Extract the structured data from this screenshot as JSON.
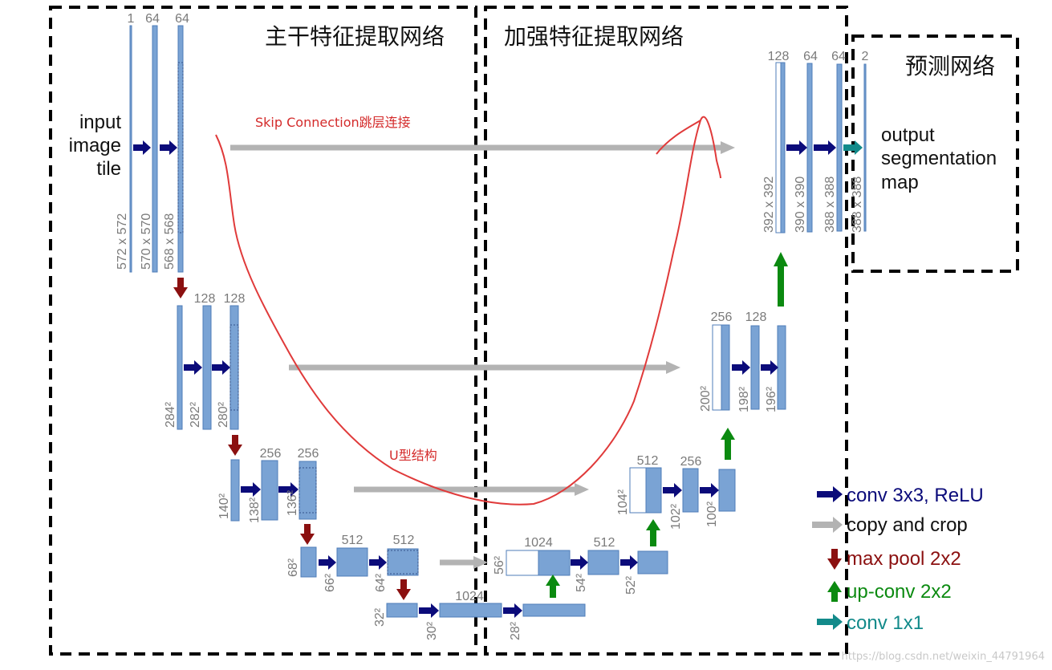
{
  "regions": {
    "backbone": "主干特征提取网络",
    "enhance": "加强特征提取网络",
    "predict": "预测网络"
  },
  "annotations": {
    "skip": "Skip Connection跳层连接",
    "ushape": "U型结构"
  },
  "io": {
    "input": [
      "input",
      "image",
      "tile"
    ],
    "output": [
      "output",
      "segmentation",
      "map"
    ]
  },
  "channels": {
    "l1": [
      "1",
      "64",
      "64"
    ],
    "l2": [
      "128",
      "128"
    ],
    "l3": [
      "256",
      "256"
    ],
    "l4": [
      "512",
      "512"
    ],
    "l5": [
      "1024"
    ],
    "u4": [
      "1024",
      "512"
    ],
    "u3": [
      "512",
      "256"
    ],
    "u2": [
      "256",
      "128"
    ],
    "u1": [
      "128",
      "64",
      "64",
      "2"
    ]
  },
  "sizes": {
    "l1": [
      "572 x 572",
      "570 x 570",
      "568 x 568"
    ],
    "l2": [
      "284²",
      "282²",
      "280²"
    ],
    "l3": [
      "140²",
      "138²",
      "136²"
    ],
    "l4": [
      "68²",
      "66²",
      "64²"
    ],
    "l5": [
      "32²",
      "30²",
      "28²"
    ],
    "u4": [
      "56²",
      "54²",
      "52²"
    ],
    "u3": [
      "104²",
      "102²",
      "100²"
    ],
    "u2": [
      "200²",
      "198²",
      "196²"
    ],
    "u1": [
      "392 x 392",
      "390 x 390",
      "388 x 388",
      "388 x 388"
    ]
  },
  "legend": [
    {
      "label": "conv 3x3, ReLU",
      "color": "#0b0b7a",
      "icon": "arrow-right-icon"
    },
    {
      "label": "copy and crop",
      "color": "#b3b3b3",
      "icon": "arrow-right-icon"
    },
    {
      "label": "max pool 2x2",
      "color": "#8b1010",
      "icon": "arrow-down-icon"
    },
    {
      "label": "up-conv 2x2",
      "color": "#0b8a10",
      "icon": "arrow-up-icon"
    },
    {
      "label": "conv 1x1",
      "color": "#128a8a",
      "icon": "arrow-right-icon"
    }
  ],
  "watermark": "https://blog.csdn.net/weixin_44791964",
  "colors": {
    "block": "#7aa3d4",
    "block_edge": "#4f7db8",
    "conv": "#0b0b7a",
    "copy": "#b3b3b3",
    "pool": "#8b1010",
    "up": "#0b8a10",
    "final": "#128a8a",
    "annotation": "#d42b2b"
  }
}
